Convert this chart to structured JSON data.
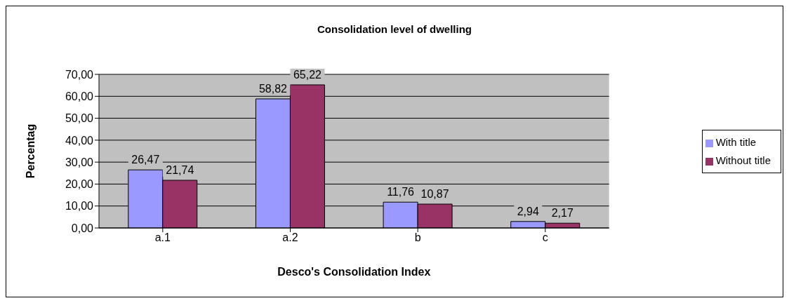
{
  "chart_data": {
    "type": "bar",
    "title": "Consolidation level of dwelling",
    "xlabel": "Desco's Consolidation Index",
    "ylabel": "Percentag",
    "categories": [
      "a.1",
      "a.2",
      "b",
      "c"
    ],
    "series": [
      {
        "name": "With title",
        "color": "#9999ff",
        "values": [
          26.47,
          58.82,
          11.76,
          2.94
        ],
        "value_labels": [
          "26,47",
          "58,82",
          "11,76",
          "2,94"
        ]
      },
      {
        "name": "Without title",
        "color": "#993366",
        "values": [
          21.74,
          65.22,
          10.87,
          2.17
        ],
        "value_labels": [
          "21,74",
          "65,22",
          "10,87",
          "2,17"
        ]
      }
    ],
    "ylim": [
      0,
      70
    ],
    "yticks": [
      {
        "value": 0,
        "label": "0,00"
      },
      {
        "value": 10,
        "label": "10,00"
      },
      {
        "value": 20,
        "label": "20,00"
      },
      {
        "value": 30,
        "label": "30,00"
      },
      {
        "value": 40,
        "label": "40,00"
      },
      {
        "value": 50,
        "label": "50,00"
      },
      {
        "value": 60,
        "label": "60,00"
      },
      {
        "value": 70,
        "label": "70,00"
      }
    ],
    "grid": "y",
    "legend": "right"
  }
}
